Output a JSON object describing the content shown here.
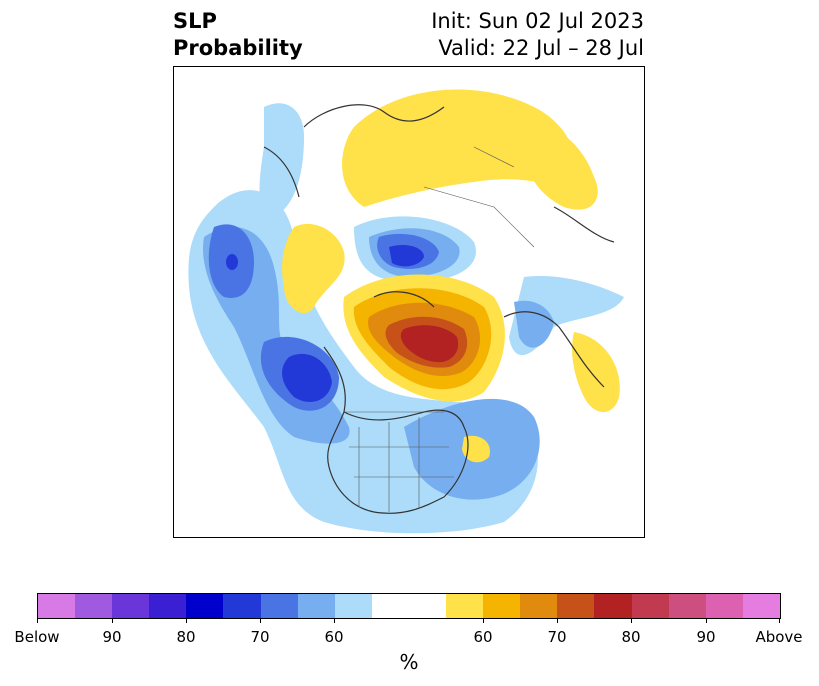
{
  "header": {
    "title_line1": "SLP",
    "title_line2": "Probability",
    "init_line": "Init: Sun 02 Jul 2023",
    "valid_line": "Valid: 22 Jul – 28 Jul"
  },
  "colorbar": {
    "colors": [
      "#d87ae6",
      "#a05adf",
      "#6a35d9",
      "#3a1fd3",
      "#0000cc",
      "#2239d8",
      "#4a73e3",
      "#77aeef",
      "#acdcf9",
      "#ffffff",
      "#ffffff",
      "#ffe14a",
      "#f4b400",
      "#e08b0d",
      "#c6521a",
      "#b22222",
      "#c23a4f",
      "#cc4f80",
      "#dc62b1",
      "#e57ce0"
    ],
    "tick_labels": [
      "Below",
      "90",
      "80",
      "70",
      "60",
      "60",
      "70",
      "80",
      "90",
      "Above"
    ],
    "unit": "%"
  },
  "map": {
    "below_color": "#2239d8",
    "above_color": "#b22222"
  }
}
